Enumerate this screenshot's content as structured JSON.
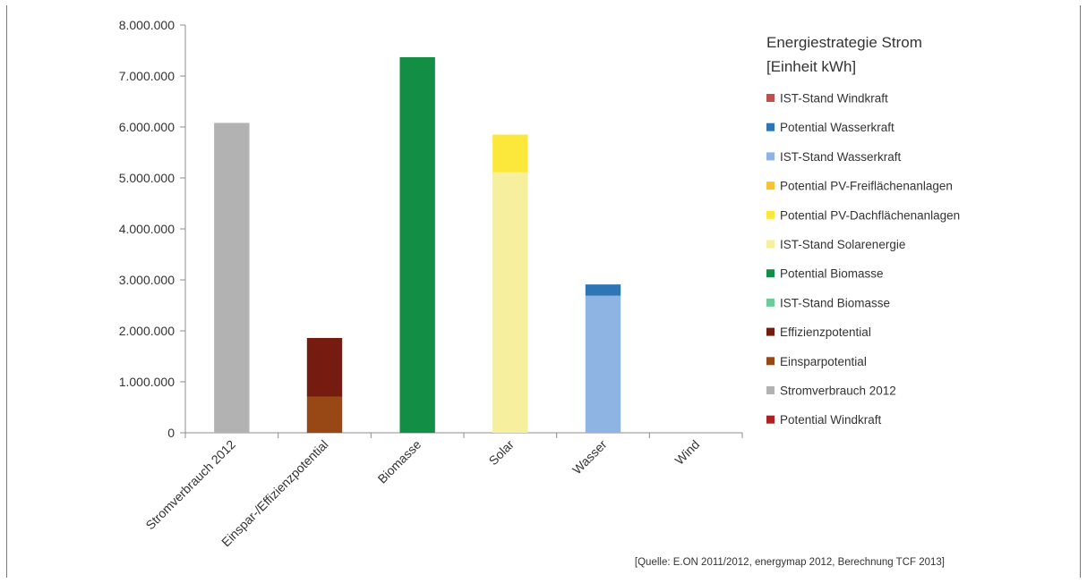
{
  "chart_data": {
    "type": "bar",
    "stacked": true,
    "title": "",
    "xlabel": "",
    "ylabel": "",
    "ylim": [
      0,
      8000000
    ],
    "y_ticks": [
      0,
      1000000,
      2000000,
      3000000,
      4000000,
      5000000,
      6000000,
      7000000,
      8000000
    ],
    "y_tick_labels": [
      "0",
      "1.000.000",
      "2.000.000",
      "3.000.000",
      "4.000.000",
      "5.000.000",
      "6.000.000",
      "7.000.000",
      "8.000.000"
    ],
    "grid": false,
    "categories": [
      "Stromverbrauch 2012",
      "Einspar-/Effizienzpotential",
      "Biomasse",
      "Solar",
      "Wasser",
      "Wind"
    ],
    "legend_title_lines": [
      "Energiestrategie Strom",
      "[Einheit kWh]"
    ],
    "legend_position": "right",
    "series": [
      {
        "name": "IST-Stand Windkraft",
        "color": "#c0504d",
        "values": [
          0,
          0,
          0,
          0,
          0,
          0
        ]
      },
      {
        "name": "Potential Wasserkraft",
        "color": "#2e75b6",
        "values": [
          0,
          0,
          0,
          0,
          220000,
          0
        ]
      },
      {
        "name": "IST-Stand Wasserkraft",
        "color": "#8eb4e3",
        "values": [
          0,
          0,
          0,
          0,
          2690000,
          0
        ]
      },
      {
        "name": "Potential PV-Freiflächenanlagen",
        "color": "#f6c431",
        "values": [
          0,
          0,
          0,
          0,
          0,
          0
        ]
      },
      {
        "name": "Potential PV-Dachflächenanlagen",
        "color": "#fce83a",
        "values": [
          0,
          0,
          0,
          740000,
          0,
          0
        ]
      },
      {
        "name": "IST-Stand Solarenergie",
        "color": "#f6ef9d",
        "values": [
          0,
          0,
          0,
          5110000,
          0,
          0
        ]
      },
      {
        "name": "Potential Biomasse",
        "color": "#138f45",
        "values": [
          0,
          0,
          7370000,
          0,
          0,
          0
        ]
      },
      {
        "name": "IST-Stand Biomasse",
        "color": "#6ccb98",
        "values": [
          0,
          0,
          0,
          0,
          0,
          0
        ]
      },
      {
        "name": "Effizienzpotential",
        "color": "#761b0f",
        "values": [
          0,
          1150000,
          0,
          0,
          0,
          0
        ]
      },
      {
        "name": "Einsparpotential",
        "color": "#984814",
        "values": [
          0,
          710000,
          0,
          0,
          0,
          0
        ]
      },
      {
        "name": "Stromverbrauch 2012",
        "color": "#b2b2b2",
        "values": [
          6080000,
          0,
          0,
          0,
          0,
          0
        ]
      },
      {
        "name": "Potential Windkraft",
        "color": "#b21f1f",
        "values": [
          0,
          0,
          0,
          0,
          0,
          0
        ]
      }
    ],
    "stack_order": [
      "Stromverbrauch 2012",
      "Einsparpotential",
      "Effizienzpotential",
      "IST-Stand Biomasse",
      "Potential Biomasse",
      "IST-Stand Solarenergie",
      "Potential PV-Dachflächenanlagen",
      "Potential PV-Freiflächenanlagen",
      "IST-Stand Wasserkraft",
      "Potential Wasserkraft",
      "IST-Stand Windkraft",
      "Potential Windkraft"
    ],
    "source_note": "[Quelle: E.ON 2011/2012, energymap 2012,  Berechnung TCF 2013]"
  }
}
